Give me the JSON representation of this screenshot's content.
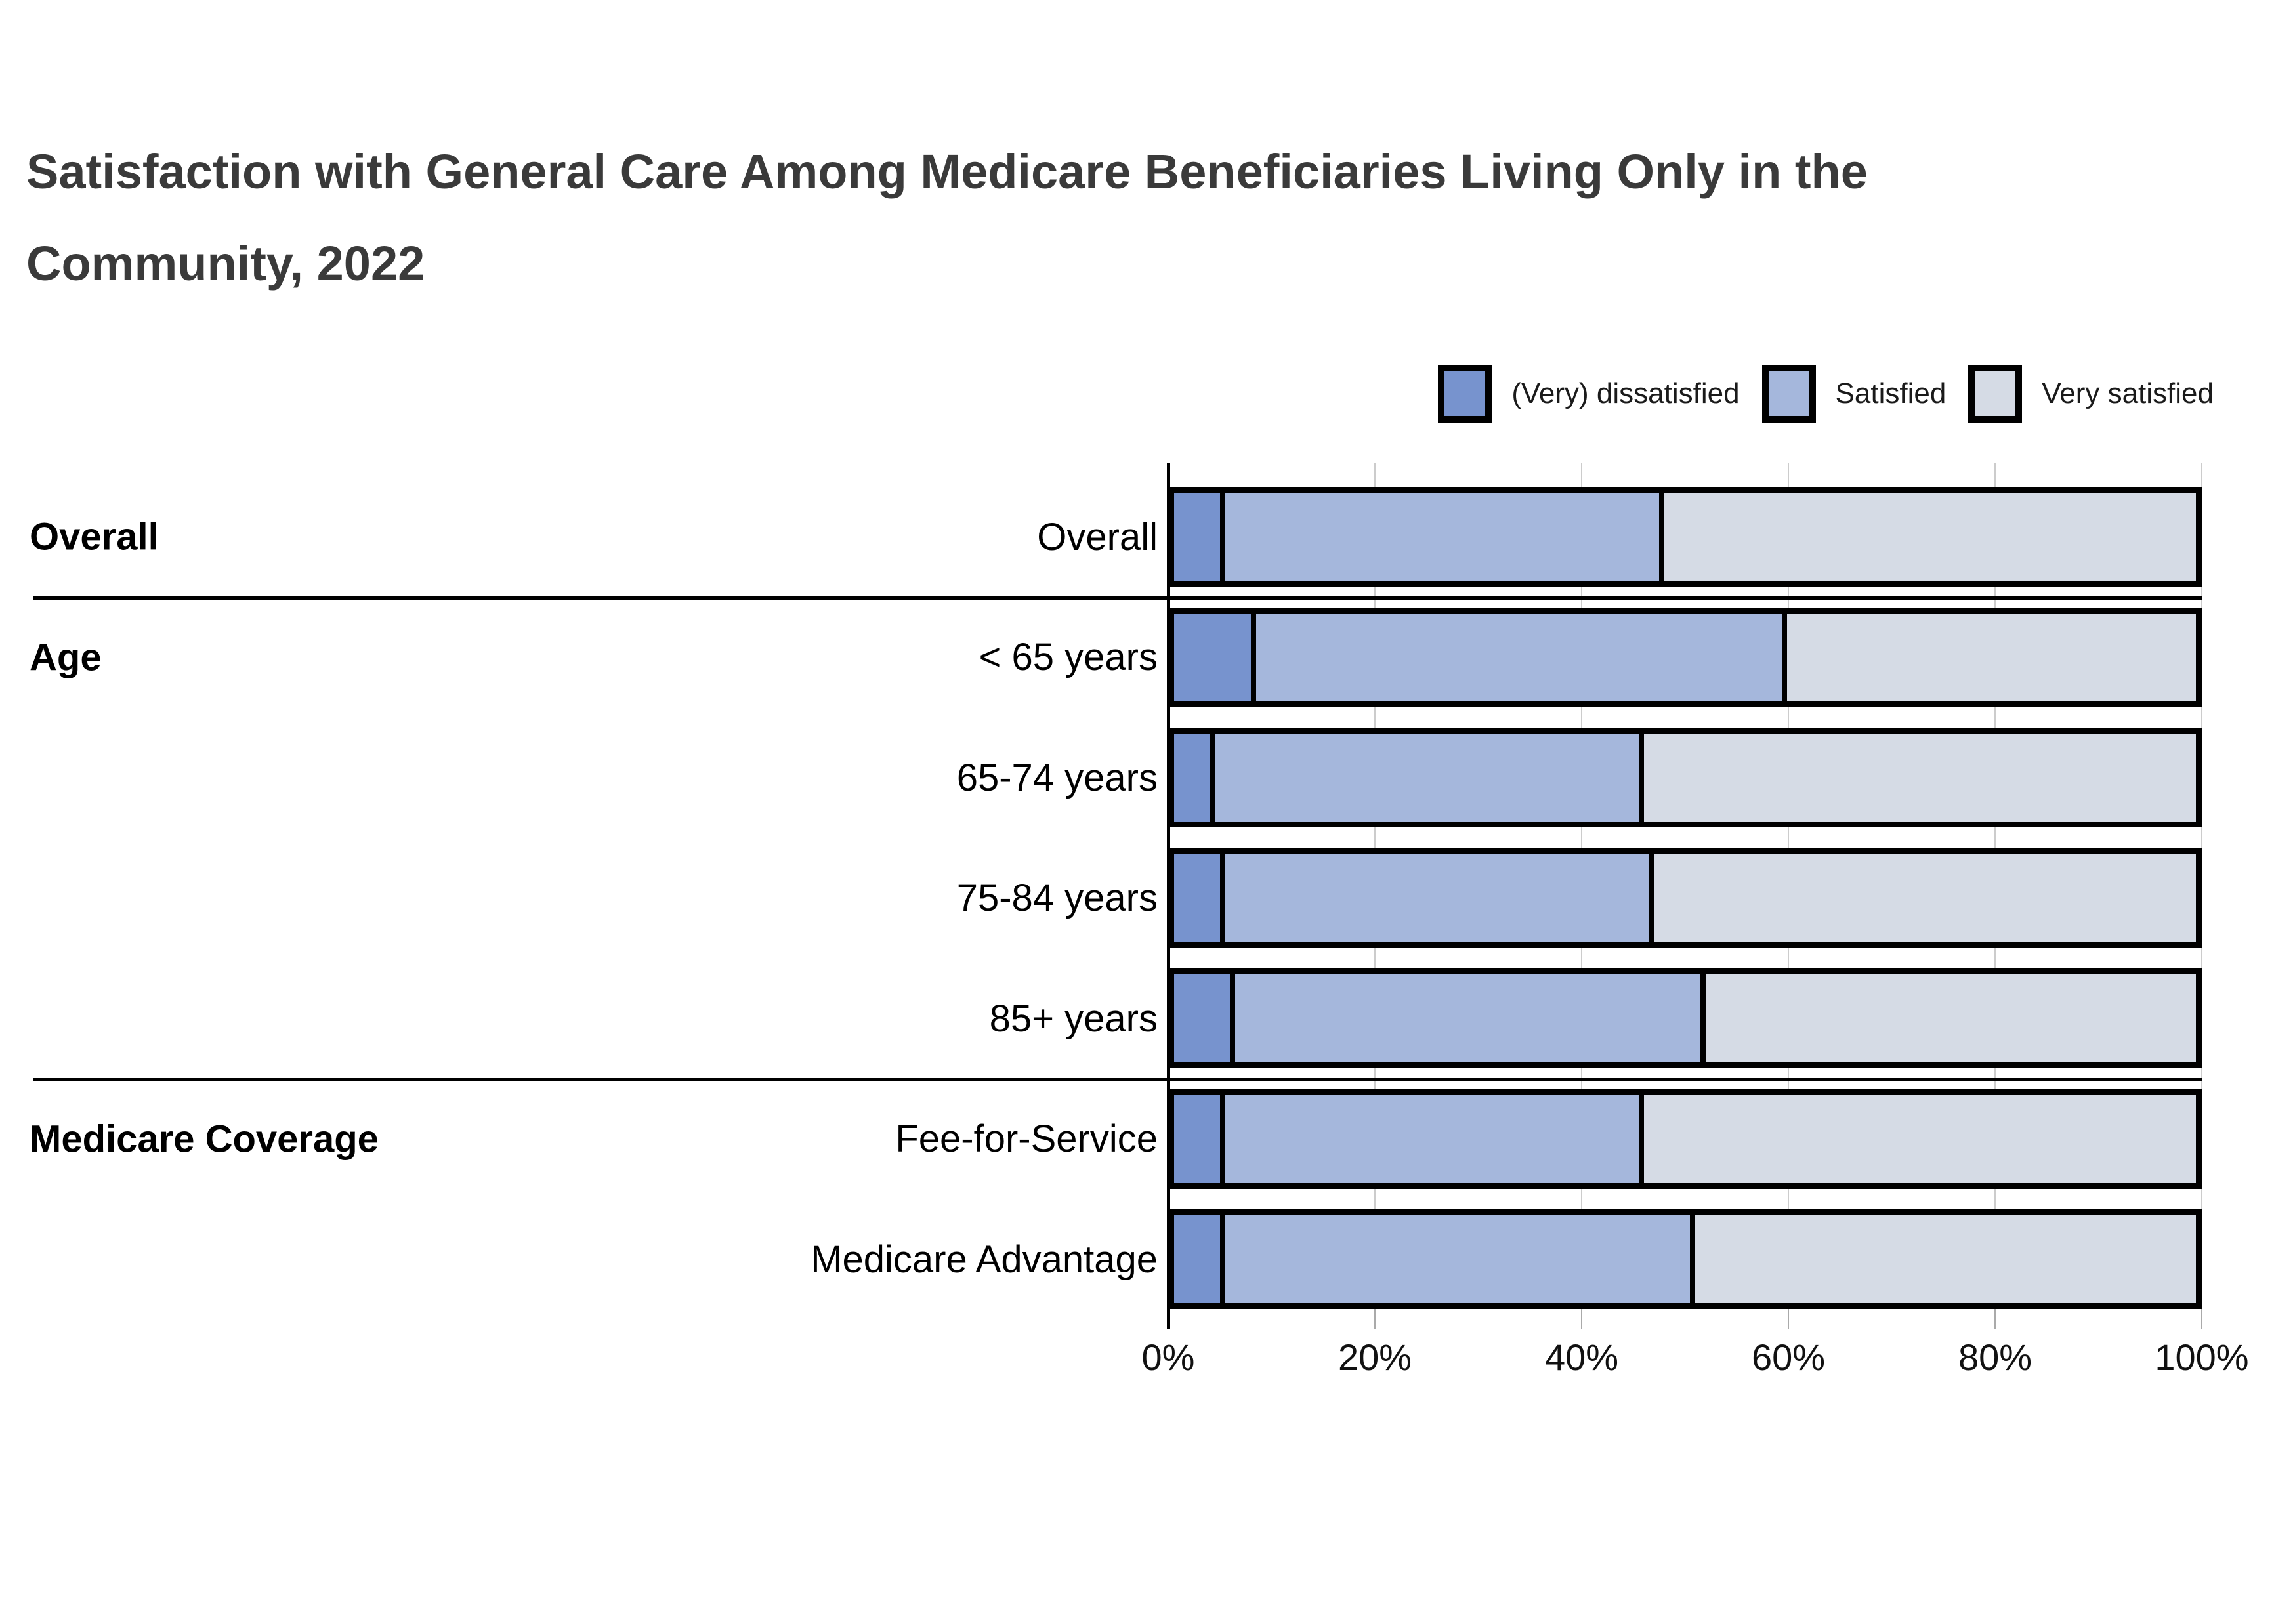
{
  "title": {
    "line1": "Satisfaction with General Care Among Medicare Beneficiaries Living Only in the",
    "line2": "Community, 2022"
  },
  "legend": [
    {
      "label": "(Very) dissatisfied",
      "color": "#7793ce"
    },
    {
      "label": "Satisfied",
      "color": "#a5b7dc"
    },
    {
      "label": "Very satisfied",
      "color": "#d5dbe5"
    }
  ],
  "colors": {
    "dissatisfied": "#7793ce",
    "satisfied": "#a5b7dc",
    "very_satisfied": "#d5dbe5",
    "bar_border": "#000000",
    "gridline": "#cccccc",
    "title_text": "#3a3a3a"
  },
  "chart_data": {
    "type": "bar",
    "stacked": true,
    "orientation": "horizontal",
    "title": "Satisfaction with General Care Among Medicare Beneficiaries Living Only in the Community, 2022",
    "categories": [
      "Overall",
      "< 65 years",
      "65-74 years",
      "75-84 years",
      "85+ years",
      "Fee-for-Service",
      "Medicare Advantage"
    ],
    "series": [
      {
        "name": "(Very) dissatisfied",
        "color": "#7793ce",
        "values": [
          5,
          8,
          4,
          5,
          6,
          5,
          5
        ]
      },
      {
        "name": "Satisfied",
        "color": "#a5b7dc",
        "values": [
          43,
          52,
          42,
          42,
          46,
          41,
          46
        ]
      },
      {
        "name": "Very satisfied",
        "color": "#d5dbe5",
        "values": [
          52,
          40,
          54,
          53,
          48,
          54,
          49
        ]
      }
    ],
    "sections": [
      {
        "label": "Overall",
        "row_indexes": [
          0
        ]
      },
      {
        "label": "Age",
        "row_indexes": [
          1,
          2,
          3,
          4
        ]
      },
      {
        "label": "Medicare Coverage",
        "row_indexes": [
          5,
          6
        ]
      }
    ],
    "xlabel": "",
    "ylabel": "",
    "xlim": [
      0,
      100
    ],
    "x_ticks": [
      "0%",
      "20%",
      "40%",
      "60%",
      "80%",
      "100%"
    ],
    "x_tick_values": [
      0,
      20,
      40,
      60,
      80,
      100
    ],
    "grid": true,
    "legend_position": "top-right"
  }
}
